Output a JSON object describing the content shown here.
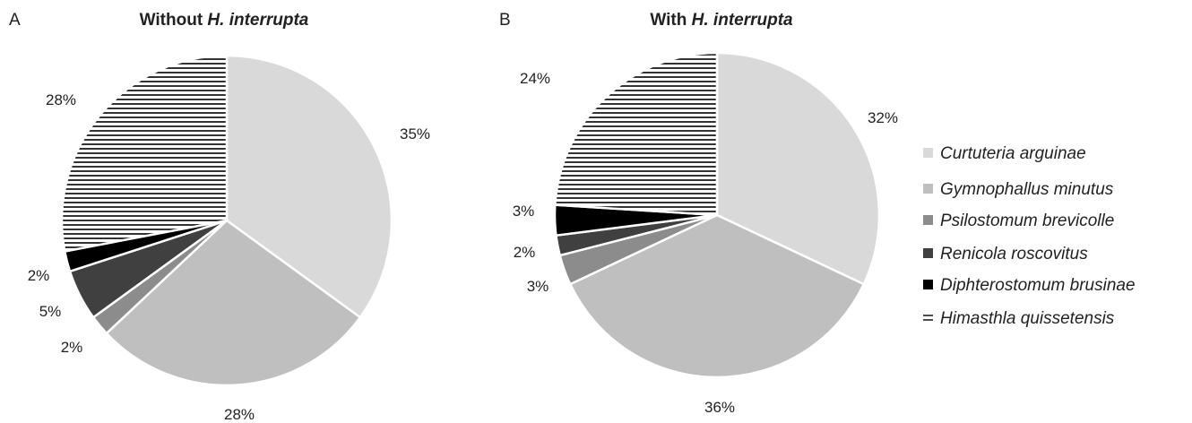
{
  "chart_data": [
    {
      "type": "pie",
      "panel": "A",
      "title_prefix": "Without ",
      "title_species": "H. interrupta",
      "slices": [
        {
          "label": "Curtuteria arguinae",
          "value": 35,
          "text": "35%",
          "fill": "#d9d9d9"
        },
        {
          "label": "Gymnophallus minutus",
          "value": 28,
          "text": "28%",
          "fill": "#bfbfbf"
        },
        {
          "label": "Psilostomum brevicolle",
          "value": 2,
          "text": "2%",
          "fill": "#8c8c8c"
        },
        {
          "label": "Renicola roscovitus",
          "value": 5,
          "text": "5%",
          "fill": "#404040"
        },
        {
          "label": "Diphterostomum brusinae",
          "value": 2,
          "text": "2%",
          "fill": "#000000"
        },
        {
          "label": "Himasthla quissetensis",
          "value": 28,
          "text": "28%",
          "fill": "hatch"
        }
      ]
    },
    {
      "type": "pie",
      "panel": "B",
      "title_prefix": "With ",
      "title_species": "H. interrupta",
      "slices": [
        {
          "label": "Curtuteria arguinae",
          "value": 32,
          "text": "32%",
          "fill": "#d9d9d9"
        },
        {
          "label": "Gymnophallus minutus",
          "value": 36,
          "text": "36%",
          "fill": "#bfbfbf"
        },
        {
          "label": "Psilostomum brevicolle",
          "value": 3,
          "text": "3%",
          "fill": "#8c8c8c"
        },
        {
          "label": "Renicola roscovitus",
          "value": 2,
          "text": "2%",
          "fill": "#404040"
        },
        {
          "label": "Diphterostomum brusinae",
          "value": 3,
          "text": "3%",
          "fill": "#000000"
        },
        {
          "label": "Himasthla quissetensis",
          "value": 24,
          "text": "24%",
          "fill": "hatch"
        }
      ]
    }
  ],
  "legend": [
    {
      "label": "Curtuteria arguinae",
      "fill": "#d9d9d9"
    },
    {
      "label": "Gymnophallus minutus",
      "fill": "#bfbfbf"
    },
    {
      "label": "Psilostomum brevicolle",
      "fill": "#8c8c8c"
    },
    {
      "label": "Renicola roscovitus",
      "fill": "#404040"
    },
    {
      "label": "Diphterostomum brusinae",
      "fill": "#000000"
    },
    {
      "label": "Himasthla quissetensis",
      "fill": "hatch"
    }
  ]
}
